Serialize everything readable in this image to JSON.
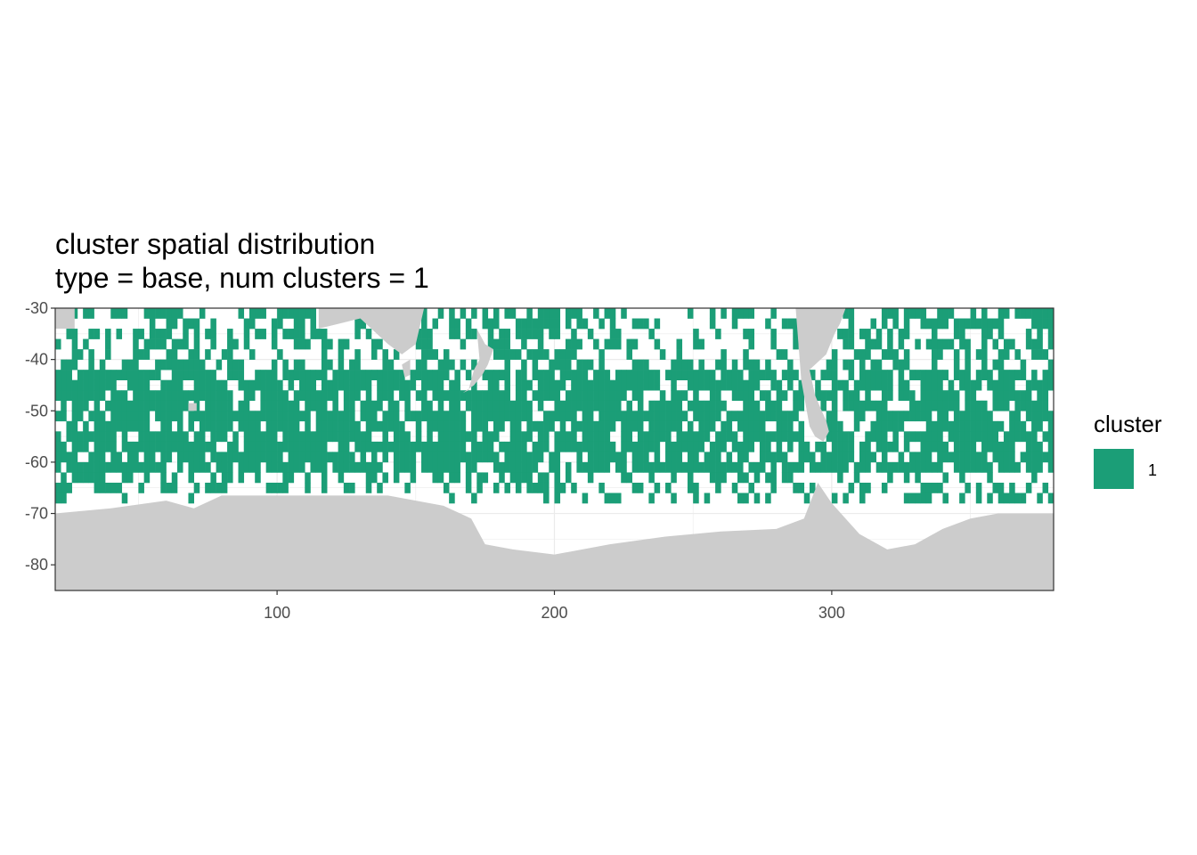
{
  "chart_data": {
    "type": "heatmap",
    "title_lines": [
      "cluster spatial distribution",
      "type = base, num clusters = 1"
    ],
    "xlabel": "",
    "ylabel": "",
    "xlim": [
      20,
      380
    ],
    "ylim": [
      -85,
      -30
    ],
    "x_ticks": [
      100,
      200,
      300
    ],
    "x_tick_labels": [
      "100",
      "200",
      "300"
    ],
    "y_ticks": [
      -30,
      -40,
      -50,
      -60,
      -70,
      -80
    ],
    "y_tick_labels": [
      "-30",
      "-40",
      "-50",
      "-60",
      "-70",
      "-80"
    ],
    "grid": true,
    "cell_size_degrees": 2,
    "colors": {
      "cluster_1": "#1b9e77",
      "land": "#cccccc",
      "panel_background": "#ffffff",
      "grid": "#ebebeb",
      "border": "#333333"
    },
    "legend": {
      "title": "cluster",
      "position": "right",
      "items": [
        {
          "label": "1",
          "color": "#1b9e77"
        }
      ]
    },
    "coastline_lat_by_lon": [
      [
        20,
        -70
      ],
      [
        40,
        -69
      ],
      [
        60,
        -67.5
      ],
      [
        70,
        -69
      ],
      [
        80,
        -66.5
      ],
      [
        100,
        -66.5
      ],
      [
        120,
        -66.5
      ],
      [
        140,
        -66.5
      ],
      [
        160,
        -68.5
      ],
      [
        170,
        -71
      ],
      [
        175,
        -76
      ],
      [
        185,
        -77
      ],
      [
        200,
        -78
      ],
      [
        220,
        -76
      ],
      [
        240,
        -74.5
      ],
      [
        260,
        -73.5
      ],
      [
        280,
        -73
      ],
      [
        290,
        -71
      ],
      [
        295,
        -64
      ],
      [
        300,
        -68
      ],
      [
        310,
        -74
      ],
      [
        320,
        -77
      ],
      [
        330,
        -76
      ],
      [
        340,
        -73
      ],
      [
        350,
        -71
      ],
      [
        360,
        -70
      ],
      [
        380,
        -70
      ]
    ],
    "land_regions": [
      {
        "name": "Africa",
        "polygon": [
          [
            20,
            -34
          ],
          [
            20,
            -30
          ],
          [
            27,
            -30
          ],
          [
            27,
            -34
          ]
        ]
      },
      {
        "name": "Australia",
        "polygon": [
          [
            115,
            -30
          ],
          [
            115,
            -34
          ],
          [
            130,
            -32
          ],
          [
            140,
            -37
          ],
          [
            145,
            -39
          ],
          [
            150,
            -37
          ],
          [
            153,
            -30
          ]
        ]
      },
      {
        "name": "Tasmania",
        "polygon": [
          [
            145,
            -41
          ],
          [
            148,
            -40
          ],
          [
            148,
            -43
          ],
          [
            146,
            -43.5
          ]
        ]
      },
      {
        "name": "New Zealand",
        "polygon": [
          [
            172,
            -34
          ],
          [
            175,
            -37
          ],
          [
            178,
            -38
          ],
          [
            176,
            -41
          ],
          [
            174,
            -43
          ],
          [
            171,
            -45
          ],
          [
            167,
            -46.5
          ],
          [
            169,
            -46
          ],
          [
            171,
            -42
          ],
          [
            173,
            -40
          ]
        ]
      },
      {
        "name": "South America",
        "polygon": [
          [
            287,
            -30
          ],
          [
            289,
            -44
          ],
          [
            291,
            -50
          ],
          [
            292,
            -53
          ],
          [
            294,
            -55
          ],
          [
            297,
            -56
          ],
          [
            299,
            -54
          ],
          [
            298,
            -52
          ],
          [
            294,
            -47
          ],
          [
            292,
            -42
          ],
          [
            298,
            -39
          ],
          [
            301,
            -35
          ],
          [
            303,
            -33
          ],
          [
            305,
            -30
          ]
        ]
      },
      {
        "name": "Kerguelen",
        "polygon": [
          [
            68,
            -48.5
          ],
          [
            71,
            -48.5
          ],
          [
            71,
            -50
          ],
          [
            68,
            -50
          ]
        ]
      }
    ],
    "cluster_bands": [
      {
        "lat_min": -62,
        "lat_max": -42,
        "cluster": "1",
        "density": 0.8
      },
      {
        "lat_min": -42,
        "lat_max": -30,
        "cluster": "1",
        "density": 0.5
      },
      {
        "lat_min": -68,
        "lat_max": -62,
        "cluster": "1",
        "density": 0.35
      }
    ]
  }
}
